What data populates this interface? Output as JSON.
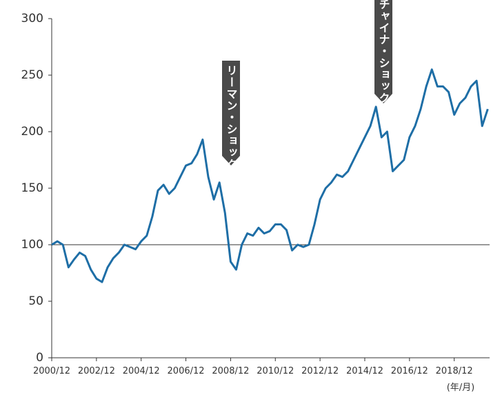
{
  "chart_data": {
    "type": "line",
    "x": [
      "2000/12",
      "2001/03",
      "2001/06",
      "2001/09",
      "2001/12",
      "2002/03",
      "2002/06",
      "2002/09",
      "2002/12",
      "2003/03",
      "2003/06",
      "2003/09",
      "2003/12",
      "2004/03",
      "2004/06",
      "2004/09",
      "2004/12",
      "2005/03",
      "2005/06",
      "2005/09",
      "2005/12",
      "2006/03",
      "2006/06",
      "2006/09",
      "2006/12",
      "2007/03",
      "2007/06",
      "2007/09",
      "2007/12",
      "2008/03",
      "2008/06",
      "2008/09",
      "2008/12",
      "2009/03",
      "2009/06",
      "2009/09",
      "2009/12",
      "2010/03",
      "2010/06",
      "2010/09",
      "2010/12",
      "2011/03",
      "2011/06",
      "2011/09",
      "2011/12",
      "2012/03",
      "2012/06",
      "2012/09",
      "2012/12",
      "2013/03",
      "2013/06",
      "2013/09",
      "2013/12",
      "2014/03",
      "2014/06",
      "2014/09",
      "2014/12",
      "2015/03",
      "2015/06",
      "2015/09",
      "2015/12",
      "2016/03",
      "2016/06",
      "2016/09",
      "2016/12",
      "2017/03",
      "2017/06",
      "2017/09",
      "2017/12",
      "2018/03",
      "2018/06",
      "2018/09",
      "2018/12",
      "2019/03",
      "2019/06",
      "2019/09",
      "2019/12",
      "2020/03",
      "2020/06"
    ],
    "series": [
      {
        "name": null,
        "color": "#1e6ea6",
        "values": [
          100,
          103,
          100,
          80,
          87,
          93,
          90,
          78,
          70,
          67,
          80,
          88,
          93,
          100,
          98,
          96,
          103,
          108,
          125,
          148,
          153,
          145,
          150,
          160,
          170,
          172,
          180,
          193,
          160,
          140,
          155,
          128,
          85,
          78,
          100,
          110,
          108,
          115,
          110,
          112,
          118,
          118,
          113,
          95,
          100,
          98,
          100,
          118,
          140,
          150,
          155,
          162,
          160,
          165,
          175,
          185,
          195,
          205,
          222,
          195,
          200,
          165,
          170,
          175,
          195,
          205,
          220,
          240,
          255,
          240,
          240,
          235,
          215,
          225,
          230,
          240,
          245,
          205,
          220
        ]
      }
    ],
    "xlim": [
      "2000/12",
      "2020/07"
    ],
    "xticks": [
      "2000/12",
      "2002/12",
      "2004/12",
      "2006/12",
      "2008/12",
      "2010/12",
      "2012/12",
      "2014/12",
      "2016/12",
      "2018/12"
    ],
    "ylim": [
      0,
      300
    ],
    "yticks": [
      0,
      50,
      100,
      150,
      200,
      250,
      300
    ],
    "reference_line": 100,
    "x_unit": "(年/月)",
    "annotations": [
      "リーマン・ショック",
      "チャイナ・ショック"
    ]
  }
}
